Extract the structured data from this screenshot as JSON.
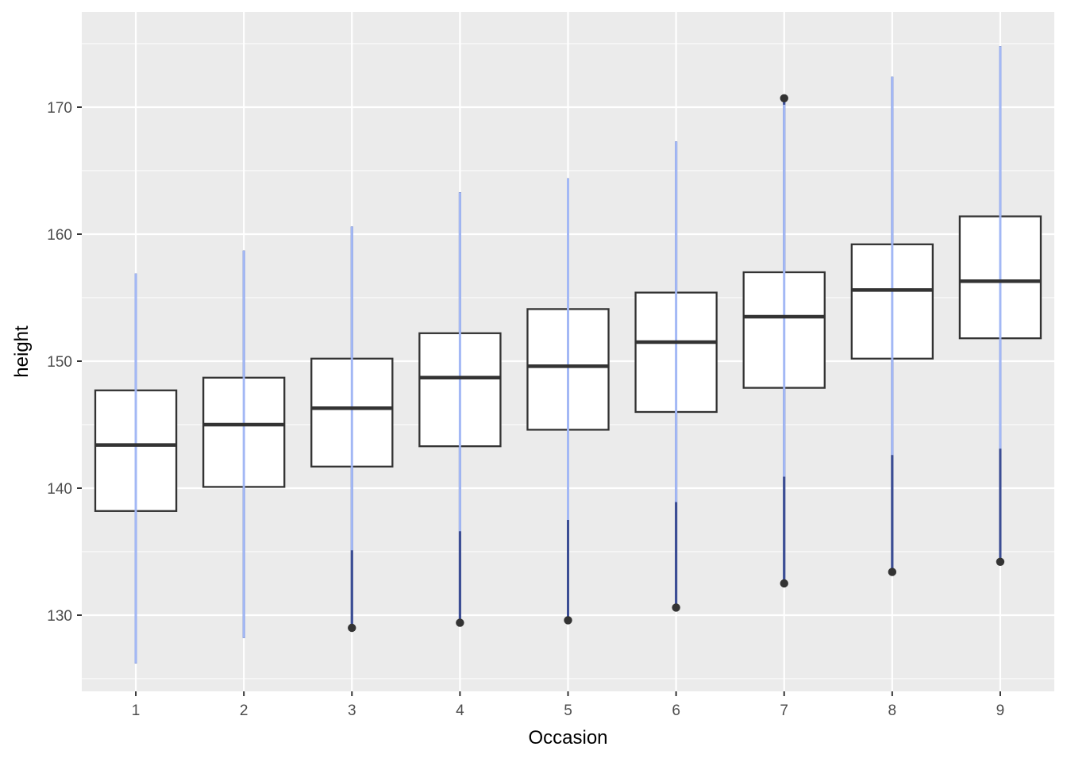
{
  "chart_data": {
    "type": "boxplot",
    "title": "",
    "xlabel": "Occasion",
    "ylabel": "height",
    "categories": [
      "1",
      "2",
      "3",
      "4",
      "5",
      "6",
      "7",
      "8",
      "9"
    ],
    "yticks": [
      "130",
      "140",
      "150",
      "160",
      "170"
    ],
    "ylim": [
      124,
      177.5
    ],
    "grid": true,
    "boxes": [
      {
        "q1": 138.2,
        "median": 143.4,
        "q3": 147.7,
        "whisker_low": 126.2,
        "whisker_high": 156.9,
        "outliers": []
      },
      {
        "q1": 140.1,
        "median": 145.0,
        "q3": 148.7,
        "whisker_low": 128.2,
        "whisker_high": 158.7,
        "outliers": []
      },
      {
        "q1": 141.7,
        "median": 146.3,
        "q3": 150.2,
        "whisker_low": 135.1,
        "whisker_high": 160.6,
        "outliers": [
          129.0
        ]
      },
      {
        "q1": 143.3,
        "median": 148.7,
        "q3": 152.2,
        "whisker_low": 136.6,
        "whisker_high": 163.3,
        "outliers": [
          129.4
        ]
      },
      {
        "q1": 144.6,
        "median": 149.6,
        "q3": 154.1,
        "whisker_low": 137.5,
        "whisker_high": 164.4,
        "outliers": [
          129.6
        ]
      },
      {
        "q1": 146.0,
        "median": 151.5,
        "q3": 155.4,
        "whisker_low": 138.9,
        "whisker_high": 167.3,
        "outliers": [
          130.6
        ]
      },
      {
        "q1": 147.9,
        "median": 153.5,
        "q3": 157.0,
        "whisker_low": 140.9,
        "whisker_high": 170.2,
        "outliers": [
          132.5,
          170.7
        ]
      },
      {
        "q1": 150.2,
        "median": 155.6,
        "q3": 159.2,
        "whisker_low": 142.6,
        "whisker_high": 172.4,
        "outliers": [
          133.4
        ]
      },
      {
        "q1": 151.8,
        "median": 156.3,
        "q3": 161.4,
        "whisker_low": 143.1,
        "whisker_high": 174.8,
        "outliers": [
          134.2
        ]
      }
    ],
    "ranges": [
      [
        126.2,
        156.9
      ],
      [
        128.2,
        158.7
      ],
      [
        129.0,
        160.6
      ],
      [
        129.4,
        163.3
      ],
      [
        129.6,
        164.4
      ],
      [
        130.6,
        167.3
      ],
      [
        132.5,
        170.7
      ],
      [
        133.4,
        172.4
      ],
      [
        134.2,
        174.8
      ]
    ],
    "colors": {
      "panel": "#ebebeb",
      "grid": "#ffffff",
      "box_stroke": "#333333",
      "box_fill": "#ffffff",
      "range_line": "#3b4d94",
      "range_line_inside": "#a3b8f5",
      "outlier": "#333333"
    }
  }
}
